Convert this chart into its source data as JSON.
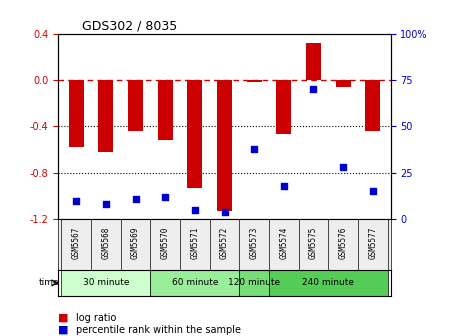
{
  "title": "GDS302 / 8035",
  "samples": [
    "GSM5567",
    "GSM5568",
    "GSM5569",
    "GSM5570",
    "GSM5571",
    "GSM5572",
    "GSM5573",
    "GSM5574",
    "GSM5575",
    "GSM5576",
    "GSM5577"
  ],
  "log_ratio": [
    -0.58,
    -0.62,
    -0.44,
    -0.52,
    -0.93,
    -1.13,
    -0.02,
    -0.47,
    0.32,
    -0.06,
    -0.44
  ],
  "percentile": [
    10,
    8,
    11,
    12,
    5,
    4,
    38,
    18,
    70,
    28,
    15
  ],
  "groups": [
    {
      "label": "30 minute",
      "start": 0,
      "end": 3,
      "color": "#ccffcc"
    },
    {
      "label": "60 minute",
      "start": 3,
      "end": 6,
      "color": "#99ee99"
    },
    {
      "label": "120 minute",
      "start": 6,
      "end": 7,
      "color": "#77dd77"
    },
    {
      "label": "240 minute",
      "start": 7,
      "end": 11,
      "color": "#55cc55"
    }
  ],
  "bar_color": "#cc0000",
  "dot_color": "#0000cc",
  "hline_color": "#cc0000",
  "ylim_left": [
    -1.2,
    0.4
  ],
  "ylim_right": [
    0,
    100
  ],
  "yticks_left": [
    -1.2,
    -0.8,
    -0.4,
    0.0,
    0.4
  ],
  "yticks_right": [
    0,
    25,
    50,
    75,
    100
  ],
  "dotted_lines": [
    -0.4,
    -0.8
  ],
  "background_color": "#ffffff",
  "plot_bg_color": "#ffffff",
  "grid_color": "#dddddd"
}
